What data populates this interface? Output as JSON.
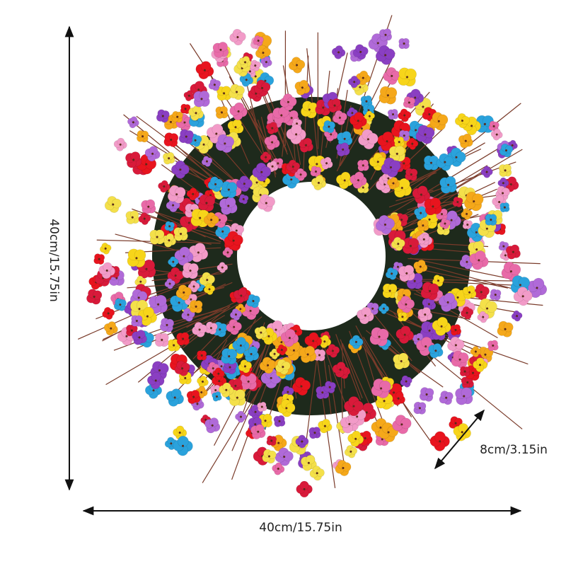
{
  "dimensions": {
    "height": "40cm/15.75in",
    "width": "40cm/15.75in",
    "depth": "8cm/3.15in"
  }
}
